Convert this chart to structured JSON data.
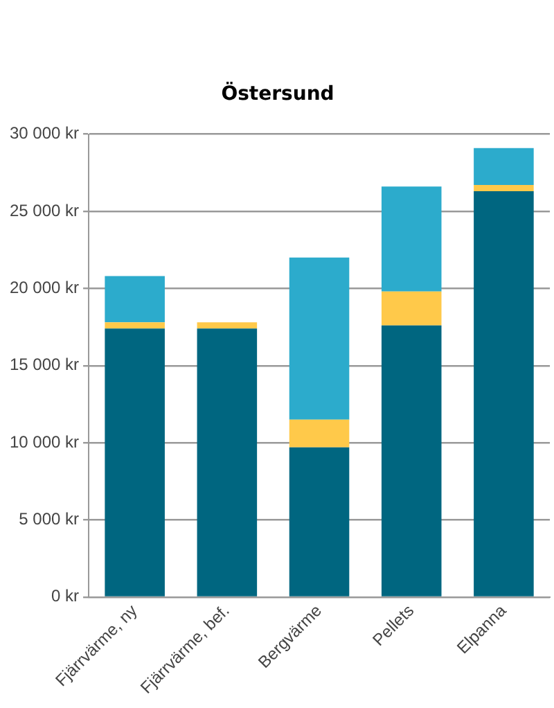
{
  "chart_data": {
    "type": "bar",
    "title": "Östersund",
    "categories": [
      "Fjärrvärme, ny",
      "Fjärrvärme, bef.",
      "Bergvärme",
      "Pellets",
      "Elpanna"
    ],
    "stacked": true,
    "series": [
      {
        "color": "#006680",
        "values": [
          17400,
          17400,
          9700,
          17600,
          26300
        ]
      },
      {
        "color": "#ffc94a",
        "values": [
          400,
          400,
          1800,
          2200,
          400
        ]
      },
      {
        "color": "#2cabcc",
        "values": [
          3000,
          null,
          10500,
          6800,
          2400
        ]
      }
    ],
    "ylim": [
      0,
      30000
    ],
    "yticks": [
      {
        "value": 0,
        "label": "0 kr"
      },
      {
        "value": 5000,
        "label": "5 000 kr"
      },
      {
        "value": 10000,
        "label": "10 000 kr"
      },
      {
        "value": 15000,
        "label": "15 000 kr"
      },
      {
        "value": 20000,
        "label": "20 000 kr"
      },
      {
        "value": 25000,
        "label": "25 000 kr"
      },
      {
        "value": 30000,
        "label": "30 000 kr"
      }
    ],
    "grid": "y",
    "legend": false
  }
}
